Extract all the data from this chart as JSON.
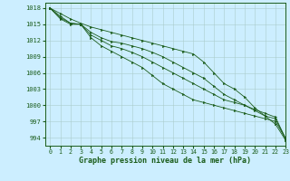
{
  "title": "Graphe pression niveau de la mer (hPa)",
  "background_color": "#cceeff",
  "grid_color": "#aacccc",
  "line_color": "#1a5c1a",
  "marker_color": "#1a5c1a",
  "xlim": [
    -0.5,
    23
  ],
  "ylim": [
    992.5,
    1019
  ],
  "yticks": [
    994,
    997,
    1000,
    1003,
    1006,
    1009,
    1012,
    1015,
    1018
  ],
  "xticks": [
    0,
    1,
    2,
    3,
    4,
    5,
    6,
    7,
    8,
    9,
    10,
    11,
    12,
    13,
    14,
    15,
    16,
    17,
    18,
    19,
    20,
    21,
    22,
    23
  ],
  "series": [
    [
      1018,
      1017,
      1016,
      1015.2,
      1014.5,
      1014,
      1013.5,
      1013,
      1012.5,
      1012,
      1011.5,
      1011,
      1010.5,
      1010,
      1009.5,
      1008,
      1006,
      1004,
      1003,
      1001.5,
      999.5,
      998,
      996.5,
      993.5
    ],
    [
      1018,
      1016.5,
      1015.2,
      1015,
      1013.5,
      1012.5,
      1011.8,
      1011.5,
      1011,
      1010.5,
      1009.8,
      1009,
      1008,
      1007,
      1006,
      1005,
      1003.5,
      1002,
      1001,
      1000,
      999,
      998,
      997.5,
      993.8
    ],
    [
      1018,
      1016.2,
      1015.2,
      1015,
      1013,
      1012,
      1011,
      1010.5,
      1009.8,
      1009,
      1008,
      1007,
      1006,
      1005,
      1004,
      1003,
      1002,
      1001,
      1000.5,
      1000,
      999.2,
      998.5,
      997.8,
      993.8
    ],
    [
      1018,
      1016,
      1015,
      1015,
      1012.5,
      1011,
      1010,
      1009,
      1008,
      1007,
      1005.5,
      1004,
      1003,
      1002,
      1001,
      1000.5,
      1000,
      999.5,
      999,
      998.5,
      998,
      997.5,
      997,
      993.8
    ]
  ]
}
